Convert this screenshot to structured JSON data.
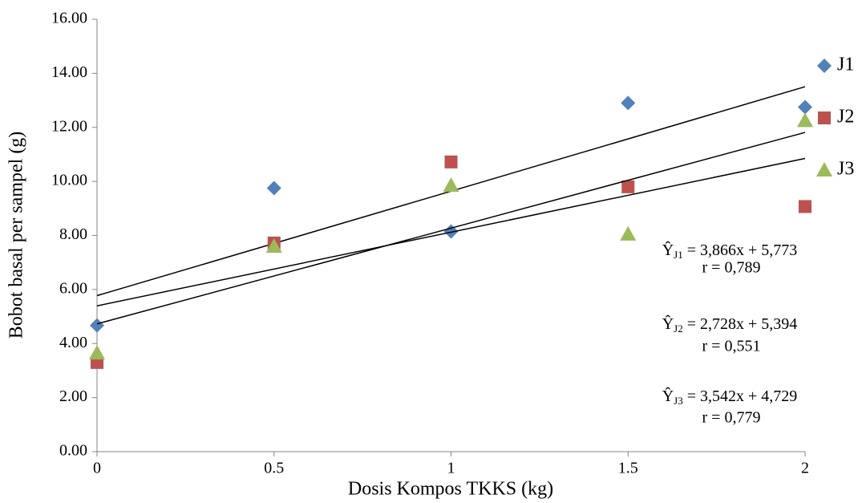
{
  "chart_data": {
    "type": "scatter",
    "x_label": "Dosis Kompos TKKS (kg)",
    "y_label": "Bobot basal per sampel (g)",
    "xlim": [
      0,
      2
    ],
    "xticks": [
      0,
      0.5,
      1,
      1.5,
      2
    ],
    "ylim": [
      0,
      16
    ],
    "yticks": [
      {
        "value": 0,
        "label": "0.00"
      },
      {
        "value": 2,
        "label": "2.00"
      },
      {
        "value": 4,
        "label": "4.00"
      },
      {
        "value": 6,
        "label": "6.00"
      },
      {
        "value": 8,
        "label": "8.00"
      },
      {
        "value": 10,
        "label": "10.00"
      },
      {
        "value": 12,
        "label": "12.00"
      },
      {
        "value": 14,
        "label": "14.00"
      },
      {
        "value": 16,
        "label": "16.00"
      }
    ],
    "legend": "right",
    "series": [
      {
        "name": "J1",
        "color": "#4f81bd",
        "marker": "diamond",
        "x": [
          0,
          0.5,
          1,
          1.5,
          2
        ],
        "values": [
          4.67,
          9.75,
          8.15,
          12.9,
          12.75
        ],
        "trend": {
          "slope": 3.866,
          "intercept": 5.773
        },
        "equation": {
          "lhs": "Ŷ",
          "sub": "J1",
          "rhs": " = 3,866x + 5,773"
        },
        "r": "r = 0,789"
      },
      {
        "name": "J2",
        "color": "#c0504d",
        "marker": "square",
        "x": [
          0,
          0.5,
          1,
          1.5,
          2
        ],
        "values": [
          3.3,
          7.72,
          10.72,
          9.8,
          9.07
        ],
        "trend": {
          "slope": 2.728,
          "intercept": 5.394
        },
        "equation": {
          "lhs": "Ŷ",
          "sub": "J2",
          "rhs": " = 2,728x + 5,394"
        },
        "r": "r = 0,551"
      },
      {
        "name": "J3",
        "color": "#9bbb59",
        "marker": "triangle",
        "x": [
          0,
          0.5,
          1,
          1.5,
          2
        ],
        "values": [
          3.65,
          7.6,
          9.85,
          8.05,
          12.25
        ],
        "trend": {
          "slope": 3.542,
          "intercept": 4.729
        },
        "equation": {
          "lhs": "Ŷ",
          "sub": "J3",
          "rhs": " = 3,542x + 4,729"
        },
        "r": "r = 0,779"
      }
    ]
  }
}
